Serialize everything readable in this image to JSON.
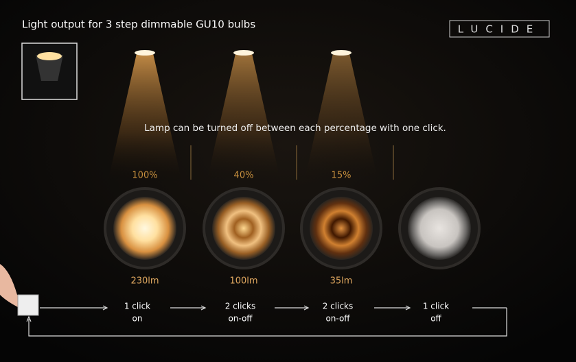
{
  "header": {
    "title": "Light output for 3 step dimmable GU10 bulbs",
    "logo": "LUCIDE"
  },
  "note": "Lamp can be turned off between each percentage with one click.",
  "steps": [
    {
      "percentage": "100%",
      "lumen": "230lm",
      "clicks": "1 click",
      "action": "on"
    },
    {
      "percentage": "40%",
      "lumen": "100lm",
      "clicks": "2 clicks",
      "action": "on-off"
    },
    {
      "percentage": "15%",
      "lumen": "35lm",
      "clicks": "2 clicks",
      "action": "on-off"
    },
    {
      "percentage": null,
      "lumen": null,
      "clicks": "1 click",
      "action": "off"
    }
  ]
}
